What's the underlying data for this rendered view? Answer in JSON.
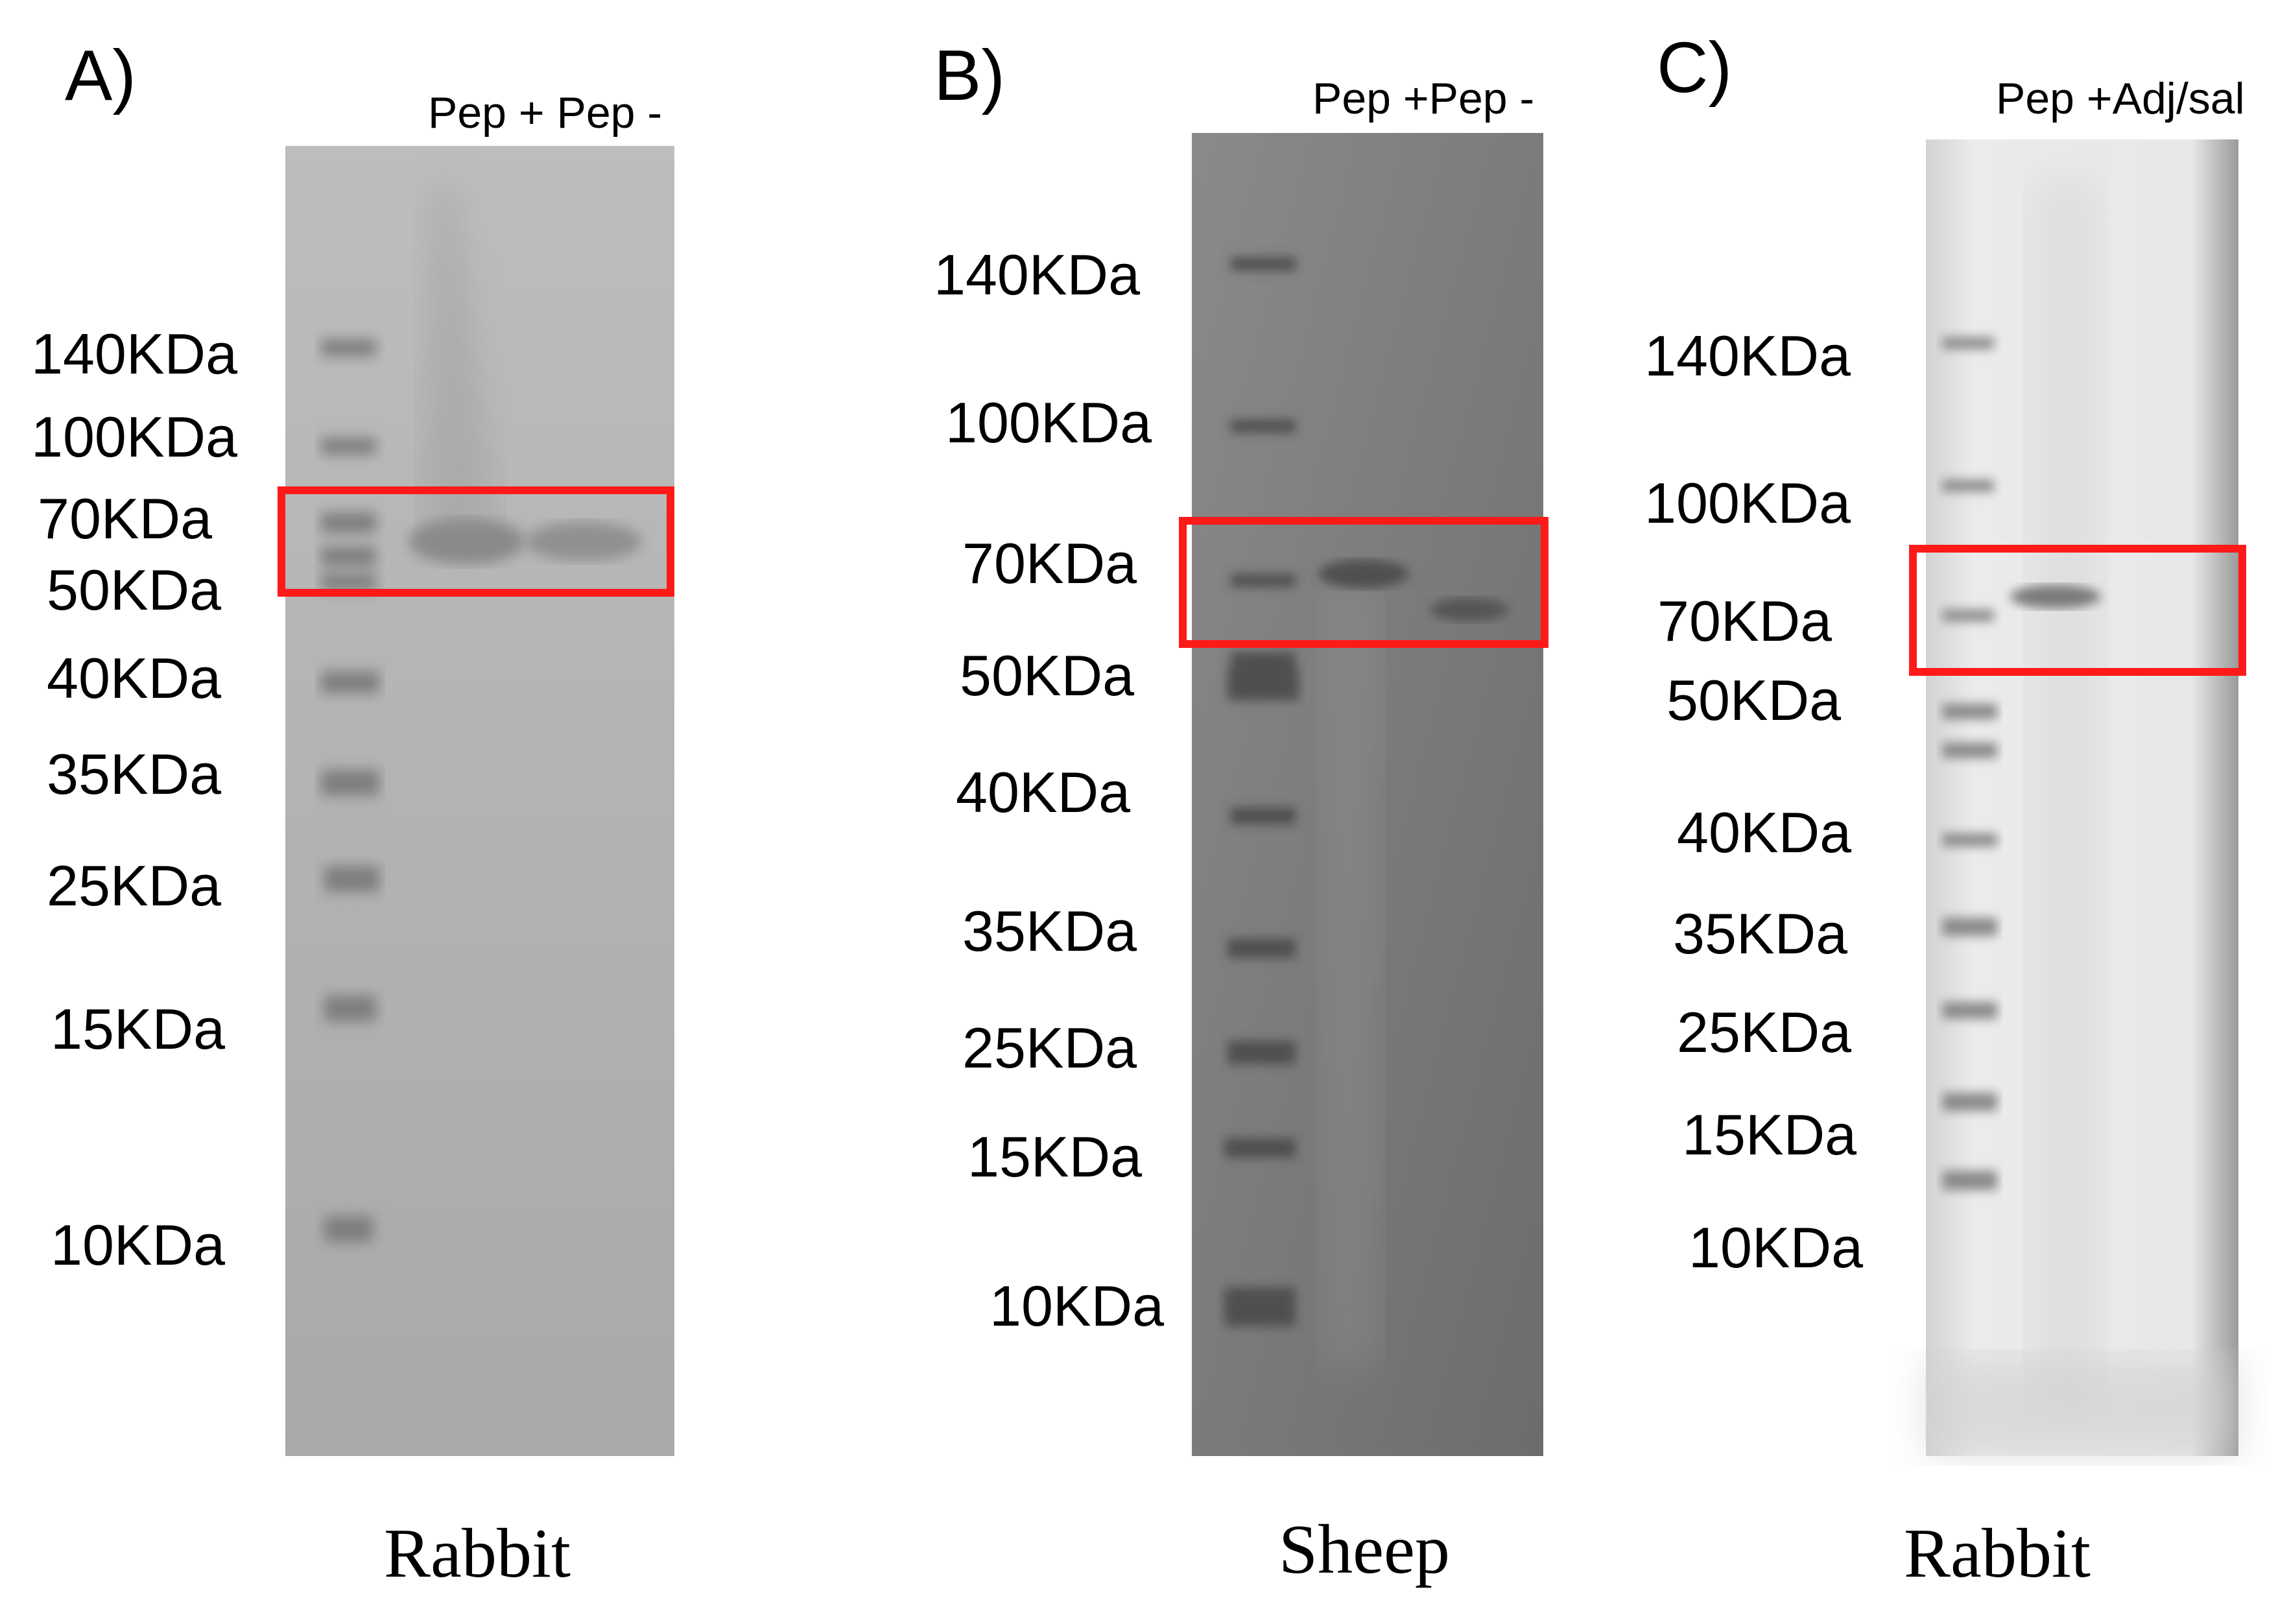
{
  "panels": [
    {
      "label": "A)",
      "lanes_label": "Pep + Pep -",
      "species": "Rabbit",
      "markers": [
        "140KDa",
        "100KDa",
        "70KDa",
        "50KDa",
        "40KDa",
        "35KDa",
        "25KDa",
        "15KDa",
        "10KDa"
      ]
    },
    {
      "label": "B)",
      "lanes_label": "Pep +Pep -",
      "species": "Sheep",
      "markers": [
        "140KDa",
        "100KDa",
        "70KDa",
        "50KDa",
        "40KDa",
        "35KDa",
        "25KDa",
        "15KDa",
        "10KDa"
      ]
    },
    {
      "label": "C)",
      "lanes_label": "Pep +Adj/sal",
      "species": "Rabbit",
      "markers": [
        "140KDa",
        "100KDa",
        "70KDa",
        "50KDa",
        "40KDa",
        "35KDa",
        "25KDa",
        "15KDa",
        "10KDa"
      ]
    }
  ],
  "colors": {
    "highlight_box": "#ff1a1a",
    "gel_a": "#b3b3b3",
    "gel_b": "#7a7a7a",
    "gel_c": "#e6e6e6"
  }
}
